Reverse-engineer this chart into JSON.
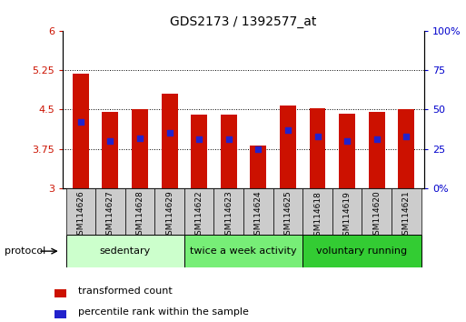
{
  "title": "GDS2173 / 1392577_at",
  "samples": [
    "GSM114626",
    "GSM114627",
    "GSM114628",
    "GSM114629",
    "GSM114622",
    "GSM114623",
    "GSM114624",
    "GSM114625",
    "GSM114618",
    "GSM114619",
    "GSM114620",
    "GSM114621"
  ],
  "transformed_count": [
    5.18,
    4.45,
    4.5,
    4.8,
    4.4,
    4.4,
    3.82,
    4.57,
    4.52,
    4.42,
    4.45,
    4.5
  ],
  "percentile_rank": [
    42,
    30,
    32,
    35,
    31,
    31,
    25,
    37,
    33,
    30,
    31,
    33
  ],
  "bar_bottom": 3.0,
  "ylim_left": [
    3.0,
    6.0
  ],
  "ylim_right": [
    0,
    100
  ],
  "yticks_left": [
    3.0,
    3.75,
    4.5,
    5.25,
    6.0
  ],
  "yticks_right": [
    0,
    25,
    50,
    75,
    100
  ],
  "ytick_labels_left": [
    "3",
    "3.75",
    "4.5",
    "5.25",
    "6"
  ],
  "ytick_labels_right": [
    "0%",
    "25",
    "50",
    "75",
    "100%"
  ],
  "bar_color": "#cc1100",
  "dot_color": "#2222cc",
  "groups": [
    {
      "label": "sedentary",
      "indices": [
        0,
        1,
        2,
        3
      ],
      "color": "#ccffcc"
    },
    {
      "label": "twice a week activity",
      "indices": [
        4,
        5,
        6,
        7
      ],
      "color": "#77ee77"
    },
    {
      "label": "voluntary running",
      "indices": [
        8,
        9,
        10,
        11
      ],
      "color": "#33cc33"
    }
  ],
  "protocol_label": "protocol",
  "legend_red": "transformed count",
  "legend_blue": "percentile rank within the sample",
  "tick_label_color_left": "#cc1100",
  "tick_label_color_right": "#0000cc",
  "bar_width": 0.55,
  "xtick_box_color": "#cccccc"
}
